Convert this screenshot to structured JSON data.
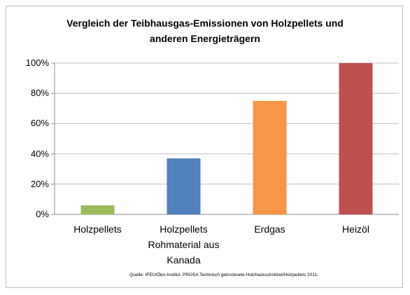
{
  "chart_data": {
    "type": "bar",
    "title": "Vergleich der Teibhausgas-Emissionen von Holzpellets und anderen Energieträgern",
    "categories": [
      "Holzpellets",
      "Holzpellets Rohmaterial aus Kanada",
      "Erdgas",
      "Heizöl"
    ],
    "values": [
      6,
      37,
      75,
      100
    ],
    "colors": [
      "#9bbb59",
      "#4f81bd",
      "#f79646",
      "#c0504d"
    ],
    "ylim": [
      0,
      100
    ],
    "yticks": [
      {
        "value": 0,
        "label": "0%"
      },
      {
        "value": 20,
        "label": "20%"
      },
      {
        "value": 40,
        "label": "40%"
      },
      {
        "value": 60,
        "label": "60%"
      },
      {
        "value": 80,
        "label": "80%"
      },
      {
        "value": 100,
        "label": "100%"
      }
    ],
    "grid": true,
    "annotation": "Quelle: IFEU/Öko-Institut, PROSA Technisch getrocknete Holzhackschnitzel/Holzpellets 2011."
  }
}
